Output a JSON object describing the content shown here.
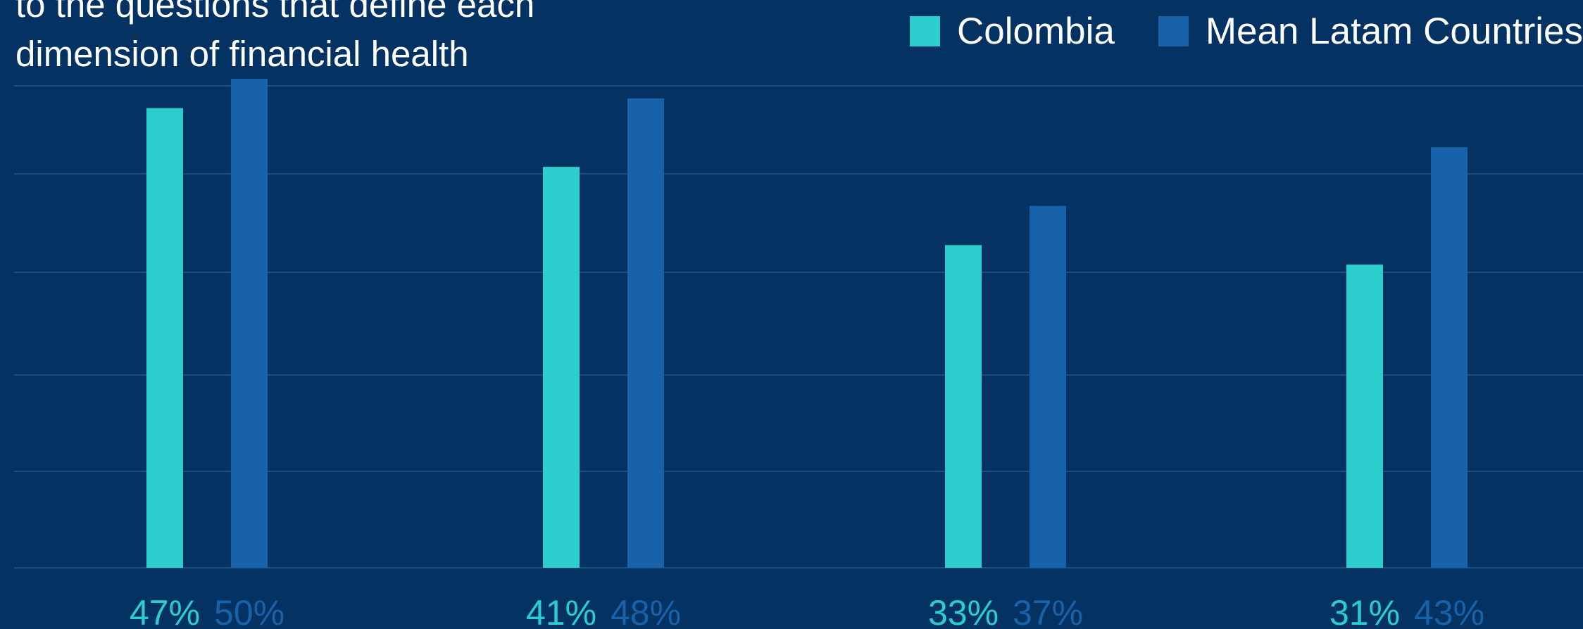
{
  "title_lines": [
    "to the questions that define each",
    "dimension of financial health"
  ],
  "colors": {
    "background": "#043263",
    "colombia": "#2ccdcd",
    "latam": "#1762a8",
    "grid": "#1b4f80"
  },
  "chart_data": {
    "type": "bar",
    "title": "",
    "categories": [
      "",
      "",
      "",
      ""
    ],
    "series": [
      {
        "name": "Colombia",
        "values": [
          47,
          41,
          33,
          31
        ]
      },
      {
        "name": "Mean Latam Countries",
        "values": [
          50,
          48,
          37,
          43
        ]
      }
    ],
    "value_labels": [
      [
        "47%",
        "41%",
        "33%",
        "31%"
      ],
      [
        "50%",
        "48%",
        "37%",
        "43%"
      ]
    ],
    "legend_position": "top-right",
    "grid": true,
    "ylim": [
      0,
      50
    ]
  }
}
